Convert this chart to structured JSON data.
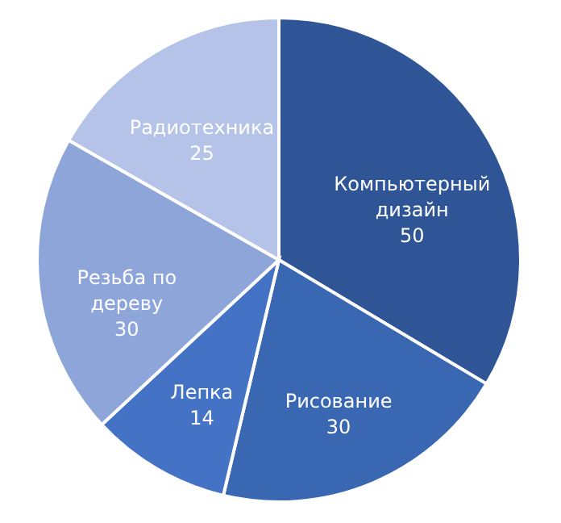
{
  "chart_data": {
    "type": "pie",
    "categories": [
      "Компьютерный дизайн",
      "Рисование",
      "Лепка",
      "Резьба по дереву",
      "Радиотехника"
    ],
    "values": [
      50,
      30,
      14,
      30,
      25
    ],
    "colors": [
      "#2f5597",
      "#3a67b1",
      "#4472c4",
      "#8ea5d9",
      "#b4c3e7"
    ],
    "data_labels": true,
    "legend": false
  }
}
